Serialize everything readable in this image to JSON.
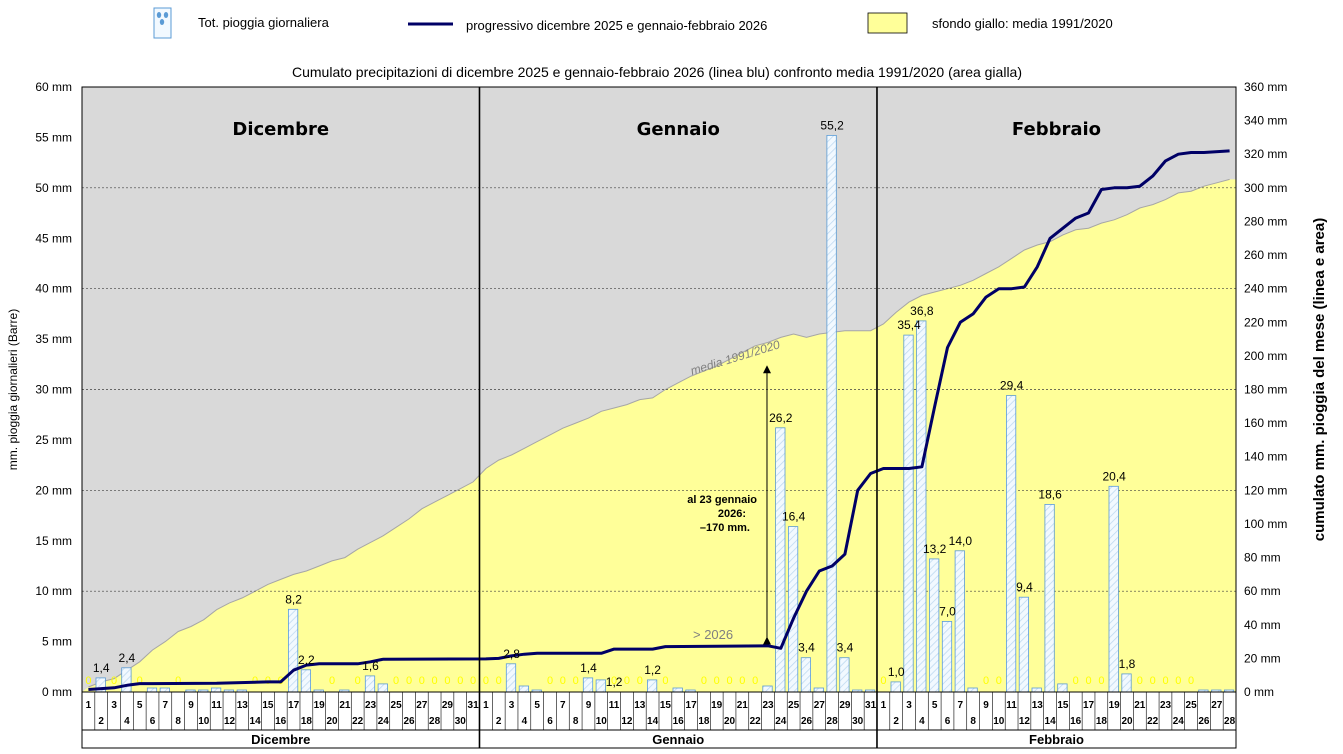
{
  "legend": {
    "bars_label": "Tot. pioggia giornaliera",
    "line_label": "progressivo dicembre 2025 e gennaio-febbraio 2026",
    "area_label": "sfondo giallo: media 1991/2020",
    "placement": "top"
  },
  "colors": {
    "plot_background": "#d9d9d9",
    "area_fill": "#ffff99",
    "area_edge": "#a6a6a6",
    "line": "#000066",
    "bar_fill": "#f2f9ff",
    "bar_edge": "#5b9bd5",
    "zero_label": "#ffff00",
    "annotation_gray": "#808080"
  },
  "chart_data": {
    "type": "bar",
    "title": "Cumulato precipitazioni di dicembre 2025 e gennaio-febbraio 2026 (linea blu) confronto media 1991/2020 (area gialla)",
    "ylabel_left": "mm. pioggia giornalieri (Barre)",
    "ylabel_right": "cumulato mm. pioggia del mese (linea e area)",
    "ylim_left": [
      0,
      60
    ],
    "ylim_right": [
      0,
      360
    ],
    "yticks_left": [
      "0 mm",
      "5 mm",
      "10 mm",
      "15 mm",
      "20 mm",
      "25 mm",
      "30 mm",
      "35 mm",
      "40 mm",
      "45 mm",
      "50 mm",
      "55 mm",
      "60 mm"
    ],
    "yticks_right": [
      "0 mm",
      "20 mm",
      "40 mm",
      "60 mm",
      "80 mm",
      "100 mm",
      "120 mm",
      "140 mm",
      "160 mm",
      "180 mm",
      "200 mm",
      "220 mm",
      "240 mm",
      "260 mm",
      "280 mm",
      "300 mm",
      "320 mm",
      "340 mm",
      "360 mm"
    ],
    "grid": "horizontal dotted",
    "months": [
      {
        "name": "Dicembre",
        "days": 31,
        "daily": [
          0,
          1.4,
          0,
          2.4,
          0,
          0.4,
          0.4,
          0,
          0.2,
          0.2,
          0.4,
          0.2,
          0.2,
          0,
          0,
          0,
          8.2,
          2.2,
          0.2,
          0,
          0.2,
          0,
          1.6,
          0.8,
          0,
          0,
          0,
          0,
          0,
          0,
          0
        ]
      },
      {
        "name": "Gennaio",
        "days": 31,
        "daily": [
          0,
          0,
          2.8,
          0.6,
          0.2,
          0,
          0,
          0,
          1.4,
          1.2,
          0,
          0,
          0,
          1.2,
          0,
          0.4,
          0.2,
          0,
          0,
          0,
          0,
          0,
          0.6,
          26.2,
          16.4,
          3.4,
          0.4,
          55.2,
          3.4,
          0.2,
          0.2
        ]
      },
      {
        "name": "Febbraio",
        "days": 28,
        "daily": [
          0,
          1.0,
          35.4,
          36.8,
          13.2,
          7.0,
          14.0,
          0.4,
          0,
          0,
          29.4,
          9.4,
          0.4,
          18.6,
          0.8,
          0,
          0,
          0,
          20.4,
          1.8,
          0,
          0,
          0,
          0,
          0,
          0.2,
          0.2,
          0.2
        ]
      }
    ],
    "bar_labels": [
      {
        "mi": 0,
        "d": 2,
        "text": "1,4"
      },
      {
        "mi": 0,
        "d": 4,
        "text": "2,4"
      },
      {
        "mi": 0,
        "d": 17,
        "text": "8,2"
      },
      {
        "mi": 0,
        "d": 18,
        "text": "2,2"
      },
      {
        "mi": 0,
        "d": 23,
        "text": "1,6"
      },
      {
        "mi": 1,
        "d": 3,
        "text": "2,8"
      },
      {
        "mi": 1,
        "d": 9,
        "text": "1,4"
      },
      {
        "mi": 1,
        "d": 11,
        "text": "1,2"
      },
      {
        "mi": 1,
        "d": 14,
        "text": "1,2"
      },
      {
        "mi": 1,
        "d": 24,
        "text": "26,2"
      },
      {
        "mi": 1,
        "d": 25,
        "text": "16,4"
      },
      {
        "mi": 1,
        "d": 26,
        "text": "3,4"
      },
      {
        "mi": 1,
        "d": 28,
        "text": "55,2"
      },
      {
        "mi": 1,
        "d": 29,
        "text": "3,4"
      },
      {
        "mi": 2,
        "d": 2,
        "text": "1,0"
      },
      {
        "mi": 2,
        "d": 3,
        "text": "35,4"
      },
      {
        "mi": 2,
        "d": 4,
        "text": "36,8"
      },
      {
        "mi": 2,
        "d": 5,
        "text": "13,2"
      },
      {
        "mi": 2,
        "d": 6,
        "text": "7,0"
      },
      {
        "mi": 2,
        "d": 7,
        "text": "14,0"
      },
      {
        "mi": 2,
        "d": 11,
        "text": "29,4"
      },
      {
        "mi": 2,
        "d": 12,
        "text": "9,4"
      },
      {
        "mi": 2,
        "d": 14,
        "text": "18,6"
      },
      {
        "mi": 2,
        "d": 19,
        "text": "20,4"
      },
      {
        "mi": 2,
        "d": 20,
        "text": "1,8"
      }
    ],
    "series": [
      {
        "name": "progressivo dicembre 2025 e gennaio-febbraio 2026",
        "axis": "right",
        "points": [
          [
            0,
            1.5
          ],
          [
            2,
            2.5
          ],
          [
            3,
            4
          ],
          [
            4,
            5
          ],
          [
            5,
            5
          ],
          [
            10,
            5.2
          ],
          [
            14,
            6
          ],
          [
            15,
            6
          ],
          [
            16,
            13
          ],
          [
            17,
            16
          ],
          [
            18,
            16.8
          ],
          [
            21,
            16.8
          ],
          [
            22,
            18
          ],
          [
            23,
            19.5
          ],
          [
            31,
            19.7
          ],
          [
            32,
            20
          ],
          [
            33,
            21.5
          ],
          [
            34,
            22.5
          ],
          [
            35,
            23
          ],
          [
            40,
            23
          ],
          [
            41,
            25.5
          ],
          [
            44,
            25.5
          ],
          [
            45,
            27
          ],
          [
            49,
            27.2
          ],
          [
            53,
            27.5
          ],
          [
            54,
            26
          ],
          [
            55,
            44
          ],
          [
            56,
            60
          ],
          [
            57,
            72
          ],
          [
            58,
            75
          ],
          [
            59,
            82
          ],
          [
            60,
            120
          ],
          [
            61,
            130
          ],
          [
            62,
            133
          ],
          [
            63,
            133
          ],
          [
            64,
            133
          ],
          [
            65,
            134
          ],
          [
            66,
            170
          ],
          [
            67,
            205
          ],
          [
            68,
            220
          ],
          [
            69,
            225
          ],
          [
            70,
            235
          ],
          [
            71,
            240
          ],
          [
            72,
            240
          ],
          [
            73,
            241
          ],
          [
            74,
            253
          ],
          [
            75,
            270
          ],
          [
            76,
            276
          ],
          [
            77,
            282
          ],
          [
            78,
            285
          ],
          [
            79,
            299
          ],
          [
            80,
            300
          ],
          [
            81,
            300
          ],
          [
            82,
            301
          ],
          [
            83,
            307
          ],
          [
            84,
            316
          ],
          [
            85,
            320
          ],
          [
            86,
            321
          ],
          [
            87,
            321
          ],
          [
            89,
            322
          ]
        ]
      },
      {
        "name": "media 1991/2020",
        "axis": "right",
        "points": [
          [
            0,
            3
          ],
          [
            1,
            6
          ],
          [
            2,
            8
          ],
          [
            3,
            13
          ],
          [
            4,
            18
          ],
          [
            5,
            25
          ],
          [
            6,
            30
          ],
          [
            7,
            36
          ],
          [
            8,
            39
          ],
          [
            9,
            43
          ],
          [
            10,
            49
          ],
          [
            11,
            53
          ],
          [
            12,
            56
          ],
          [
            13,
            60
          ],
          [
            14,
            64
          ],
          [
            15,
            67
          ],
          [
            16,
            70
          ],
          [
            17,
            72
          ],
          [
            18,
            75
          ],
          [
            19,
            78
          ],
          [
            20,
            80
          ],
          [
            21,
            85
          ],
          [
            22,
            89
          ],
          [
            23,
            93
          ],
          [
            24,
            98
          ],
          [
            25,
            103
          ],
          [
            26,
            109
          ],
          [
            27,
            113
          ],
          [
            28,
            117
          ],
          [
            29,
            121
          ],
          [
            30,
            125
          ],
          [
            31,
            133
          ],
          [
            32,
            138
          ],
          [
            33,
            141
          ],
          [
            34,
            145
          ],
          [
            35,
            149
          ],
          [
            36,
            153
          ],
          [
            37,
            157
          ],
          [
            38,
            160
          ],
          [
            39,
            163
          ],
          [
            40,
            167
          ],
          [
            41,
            169
          ],
          [
            42,
            171
          ],
          [
            43,
            174
          ],
          [
            44,
            175
          ],
          [
            45,
            180
          ],
          [
            46,
            184
          ],
          [
            47,
            188
          ],
          [
            48,
            191
          ],
          [
            49,
            194
          ],
          [
            50,
            198
          ],
          [
            51,
            202
          ],
          [
            52,
            206
          ],
          [
            53,
            208
          ],
          [
            54,
            211
          ],
          [
            55,
            213
          ],
          [
            56,
            211
          ],
          [
            57,
            213
          ],
          [
            58,
            214
          ],
          [
            59,
            215
          ],
          [
            60,
            215
          ],
          [
            61,
            215
          ],
          [
            62,
            219
          ],
          [
            63,
            226
          ],
          [
            64,
            232
          ],
          [
            65,
            236
          ],
          [
            66,
            238
          ],
          [
            67,
            240
          ],
          [
            68,
            242
          ],
          [
            69,
            245
          ],
          [
            70,
            249
          ],
          [
            71,
            253
          ],
          [
            72,
            258
          ],
          [
            73,
            263
          ],
          [
            74,
            266
          ],
          [
            75,
            268
          ],
          [
            76,
            272
          ],
          [
            77,
            275
          ],
          [
            78,
            276
          ],
          [
            79,
            279
          ],
          [
            80,
            281
          ],
          [
            81,
            284
          ],
          [
            82,
            288
          ],
          [
            83,
            290
          ],
          [
            84,
            293
          ],
          [
            85,
            297
          ],
          [
            86,
            298
          ],
          [
            87,
            301
          ],
          [
            88,
            303
          ],
          [
            89,
            305
          ]
        ]
      }
    ],
    "annotations": [
      {
        "id": "media",
        "text": "media 1991/2020"
      },
      {
        "id": "gt2026",
        "text": "> 2026"
      },
      {
        "id": "note1",
        "text": "al 23 gennaio"
      },
      {
        "id": "note2",
        "text": "2026:"
      },
      {
        "id": "note3",
        "text": "–170 mm."
      }
    ],
    "annotation_arrow": {
      "at_day_index": 53,
      "from_value": 27,
      "to_value": 198
    }
  }
}
